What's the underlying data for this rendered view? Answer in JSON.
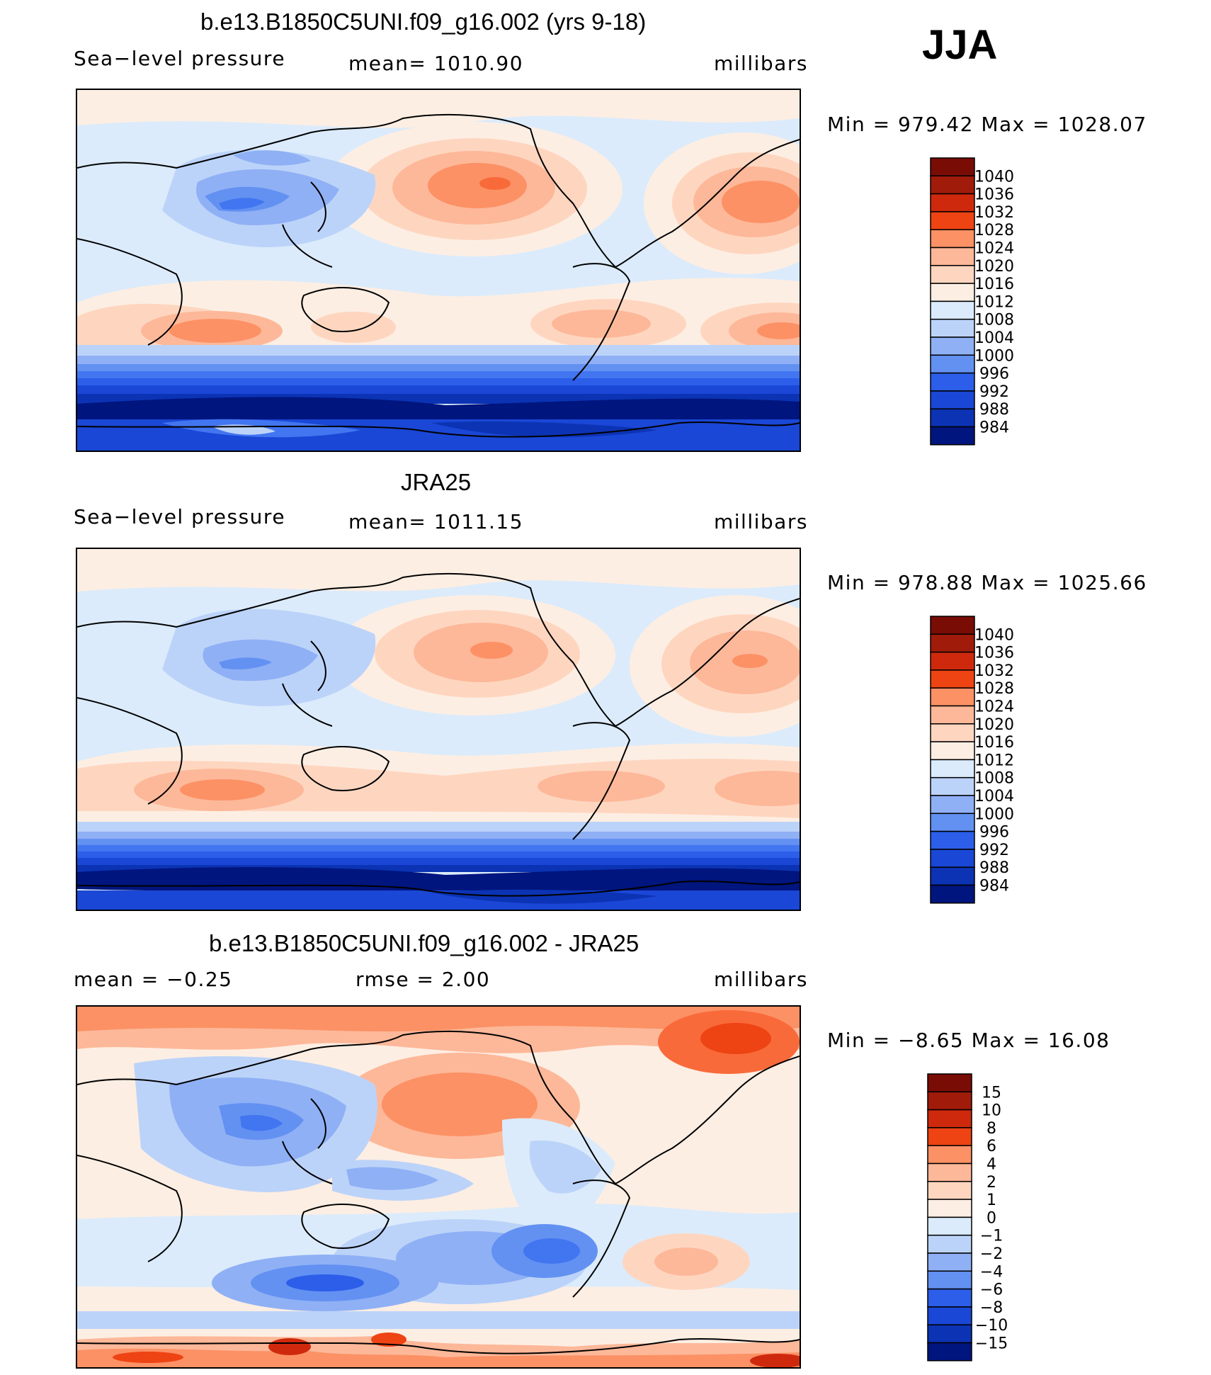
{
  "season": "JJA",
  "colors": {
    "abs_scale": [
      "#00157e",
      "#0b33b4",
      "#1a47d6",
      "#2c5ee9",
      "#4275f0",
      "#6391f2",
      "#8fb0f5",
      "#bcd3f9",
      "#dbebfb",
      "#fdeee3",
      "#fed6c0",
      "#fdb899",
      "#fc9165",
      "#f96a3a",
      "#ee4313",
      "#cf290d",
      "#a11b0a",
      "#7a0c06"
    ],
    "diff_scale": [
      "#00157e",
      "#0b33b4",
      "#1a47d6",
      "#2c5ee9",
      "#4275f0",
      "#6391f2",
      "#8fb0f5",
      "#bcd3f9",
      "#dbebfb",
      "#fdeee3",
      "#fed6c0",
      "#fdb899",
      "#fc9165",
      "#f96a3a",
      "#ee4313",
      "#cf290d",
      "#a11b0a",
      "#7a0c06"
    ],
    "land_outline": "#000000"
  },
  "chart_data": [
    {
      "type": "heatmap",
      "title": "b.e13.B1850C5UNI.f09_g16.002 (yrs 9-18)",
      "left_label": "Sea−level  pressure",
      "mean_text": "mean=  1010.90",
      "units": "millibars",
      "minmax_text": "Min  =  979.42  Max  =  1028.07",
      "min": 979.42,
      "max": 1028.07,
      "mean": 1010.9,
      "colorbar_levels": [
        "1040",
        "1036",
        "1032",
        "1028",
        "1024",
        "1020",
        "1016",
        "1012",
        "1008",
        "1004",
        "1000",
        "996",
        "992",
        "988",
        "984"
      ]
    },
    {
      "type": "heatmap",
      "title": "JRA25",
      "left_label": "Sea−level  pressure",
      "mean_text": "mean=  1011.15",
      "units": "millibars",
      "minmax_text": "Min  =  978.88  Max  =  1025.66",
      "min": 978.88,
      "max": 1025.66,
      "mean": 1011.15,
      "colorbar_levels": [
        "1040",
        "1036",
        "1032",
        "1028",
        "1024",
        "1020",
        "1016",
        "1012",
        "1008",
        "1004",
        "1000",
        "996",
        "992",
        "988",
        "984"
      ]
    },
    {
      "type": "heatmap",
      "title": "b.e13.B1850C5UNI.f09_g16.002 - JRA25",
      "left_label": "mean  =    −0.25",
      "mean_text": "rmse  =      2.00",
      "units": "millibars",
      "minmax_text": "Min  =    −8.65  Max  =     16.08",
      "mean": -0.25,
      "rmse": 2.0,
      "min": -8.65,
      "max": 16.08,
      "colorbar_levels": [
        "15",
        "10",
        "8",
        "6",
        "4",
        "2",
        "1",
        "0",
        "−1",
        "−2",
        "−4",
        "−6",
        "−8",
        "−10",
        "−15"
      ]
    }
  ]
}
